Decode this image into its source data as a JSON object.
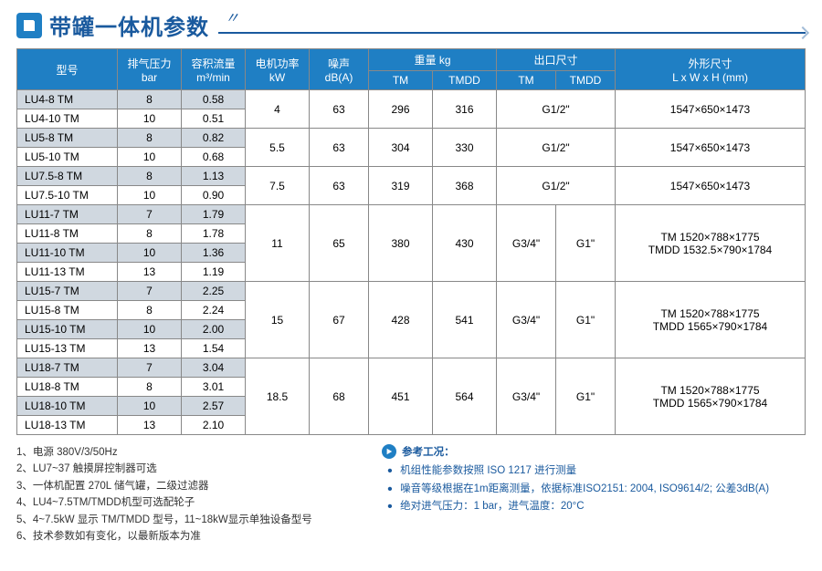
{
  "title": "带罐一体机参数",
  "colors": {
    "brand": "#1f7fc4",
    "brand_dark": "#1a5a9e",
    "alt_row": "#d0d8e0",
    "border": "#888"
  },
  "headers": {
    "model": "型号",
    "exhaust_pressure": "排气压力",
    "exhaust_pressure_unit": "bar",
    "volume_flow": "容积流量",
    "volume_flow_unit": "m³/min",
    "motor_power": "电机功率",
    "motor_power_unit": "kW",
    "noise": "噪声",
    "noise_unit": "dB(A)",
    "weight": "重量  kg",
    "outlet": "出口尺寸",
    "dimensions": "外形尺寸",
    "dimensions_unit": "L x W x H (mm)",
    "tm": "TM",
    "tmdd": "TMDD"
  },
  "groups": [
    {
      "power": "4",
      "noise": "63",
      "wt_tm": "296",
      "wt_tmdd": "316",
      "outlet_tm": "G1/2\"",
      "outlet_tmdd": null,
      "dims": [
        "1547×650×1473"
      ],
      "rows": [
        {
          "m": "LU4-8 TM",
          "p": "8",
          "f": "0.58",
          "alt": true
        },
        {
          "m": "LU4-10 TM",
          "p": "10",
          "f": "0.51",
          "alt": false
        }
      ]
    },
    {
      "power": "5.5",
      "noise": "63",
      "wt_tm": "304",
      "wt_tmdd": "330",
      "outlet_tm": "G1/2\"",
      "outlet_tmdd": null,
      "dims": [
        "1547×650×1473"
      ],
      "rows": [
        {
          "m": "LU5-8 TM",
          "p": "8",
          "f": "0.82",
          "alt": true
        },
        {
          "m": "LU5-10 TM",
          "p": "10",
          "f": "0.68",
          "alt": false
        }
      ]
    },
    {
      "power": "7.5",
      "noise": "63",
      "wt_tm": "319",
      "wt_tmdd": "368",
      "outlet_tm": "G1/2\"",
      "outlet_tmdd": null,
      "dims": [
        "1547×650×1473"
      ],
      "rows": [
        {
          "m": "LU7.5-8 TM",
          "p": "8",
          "f": "1.13",
          "alt": true
        },
        {
          "m": "LU7.5-10 TM",
          "p": "10",
          "f": "0.90",
          "alt": false
        }
      ]
    },
    {
      "power": "11",
      "noise": "65",
      "wt_tm": "380",
      "wt_tmdd": "430",
      "outlet_tm": "G3/4\"",
      "outlet_tmdd": "G1\"",
      "dims": [
        "TM 1520×788×1775",
        "TMDD 1532.5×790×1784"
      ],
      "rows": [
        {
          "m": "LU11-7 TM",
          "p": "7",
          "f": "1.79",
          "alt": true
        },
        {
          "m": "LU11-8 TM",
          "p": "8",
          "f": "1.78",
          "alt": false
        },
        {
          "m": "LU11-10 TM",
          "p": "10",
          "f": "1.36",
          "alt": true
        },
        {
          "m": "LU11-13 TM",
          "p": "13",
          "f": "1.19",
          "alt": false
        }
      ]
    },
    {
      "power": "15",
      "noise": "67",
      "wt_tm": "428",
      "wt_tmdd": "541",
      "outlet_tm": "G3/4\"",
      "outlet_tmdd": "G1\"",
      "dims": [
        "TM 1520×788×1775",
        "TMDD 1565×790×1784"
      ],
      "rows": [
        {
          "m": "LU15-7 TM",
          "p": "7",
          "f": "2.25",
          "alt": true
        },
        {
          "m": "LU15-8 TM",
          "p": "8",
          "f": "2.24",
          "alt": false
        },
        {
          "m": "LU15-10 TM",
          "p": "10",
          "f": "2.00",
          "alt": true
        },
        {
          "m": "LU15-13 TM",
          "p": "13",
          "f": "1.54",
          "alt": false
        }
      ]
    },
    {
      "power": "18.5",
      "noise": "68",
      "wt_tm": "451",
      "wt_tmdd": "564",
      "outlet_tm": "G3/4\"",
      "outlet_tmdd": "G1\"",
      "dims": [
        "TM 1520×788×1775",
        "TMDD 1565×790×1784"
      ],
      "rows": [
        {
          "m": "LU18-7 TM",
          "p": "7",
          "f": "3.04",
          "alt": true
        },
        {
          "m": "LU18-8 TM",
          "p": "8",
          "f": "3.01",
          "alt": false
        },
        {
          "m": "LU18-10 TM",
          "p": "10",
          "f": "2.57",
          "alt": true
        },
        {
          "m": "LU18-13 TM",
          "p": "13",
          "f": "2.10",
          "alt": false
        }
      ]
    }
  ],
  "notes": [
    "1、电源 380V/3/50Hz",
    "2、LU7~37 触摸屏控制器可选",
    "3、一体机配置 270L 储气罐，二级过滤器",
    "4、LU4~7.5TM/TMDD机型可选配轮子",
    "5、4~7.5kW 显示 TM/TMDD 型号，11~18kW显示单独设备型号",
    "6、技术参数如有变化，以最新版本为准"
  ],
  "ref_title": "参考工况：",
  "ref_items": [
    "机组性能参数按照 ISO 1217 进行测量",
    "噪音等级根据在1m距离测量，依据标准ISO2151: 2004, ISO9614/2; 公差3dB(A)",
    "绝对进气压力：1 bar，进气温度：20°C"
  ]
}
